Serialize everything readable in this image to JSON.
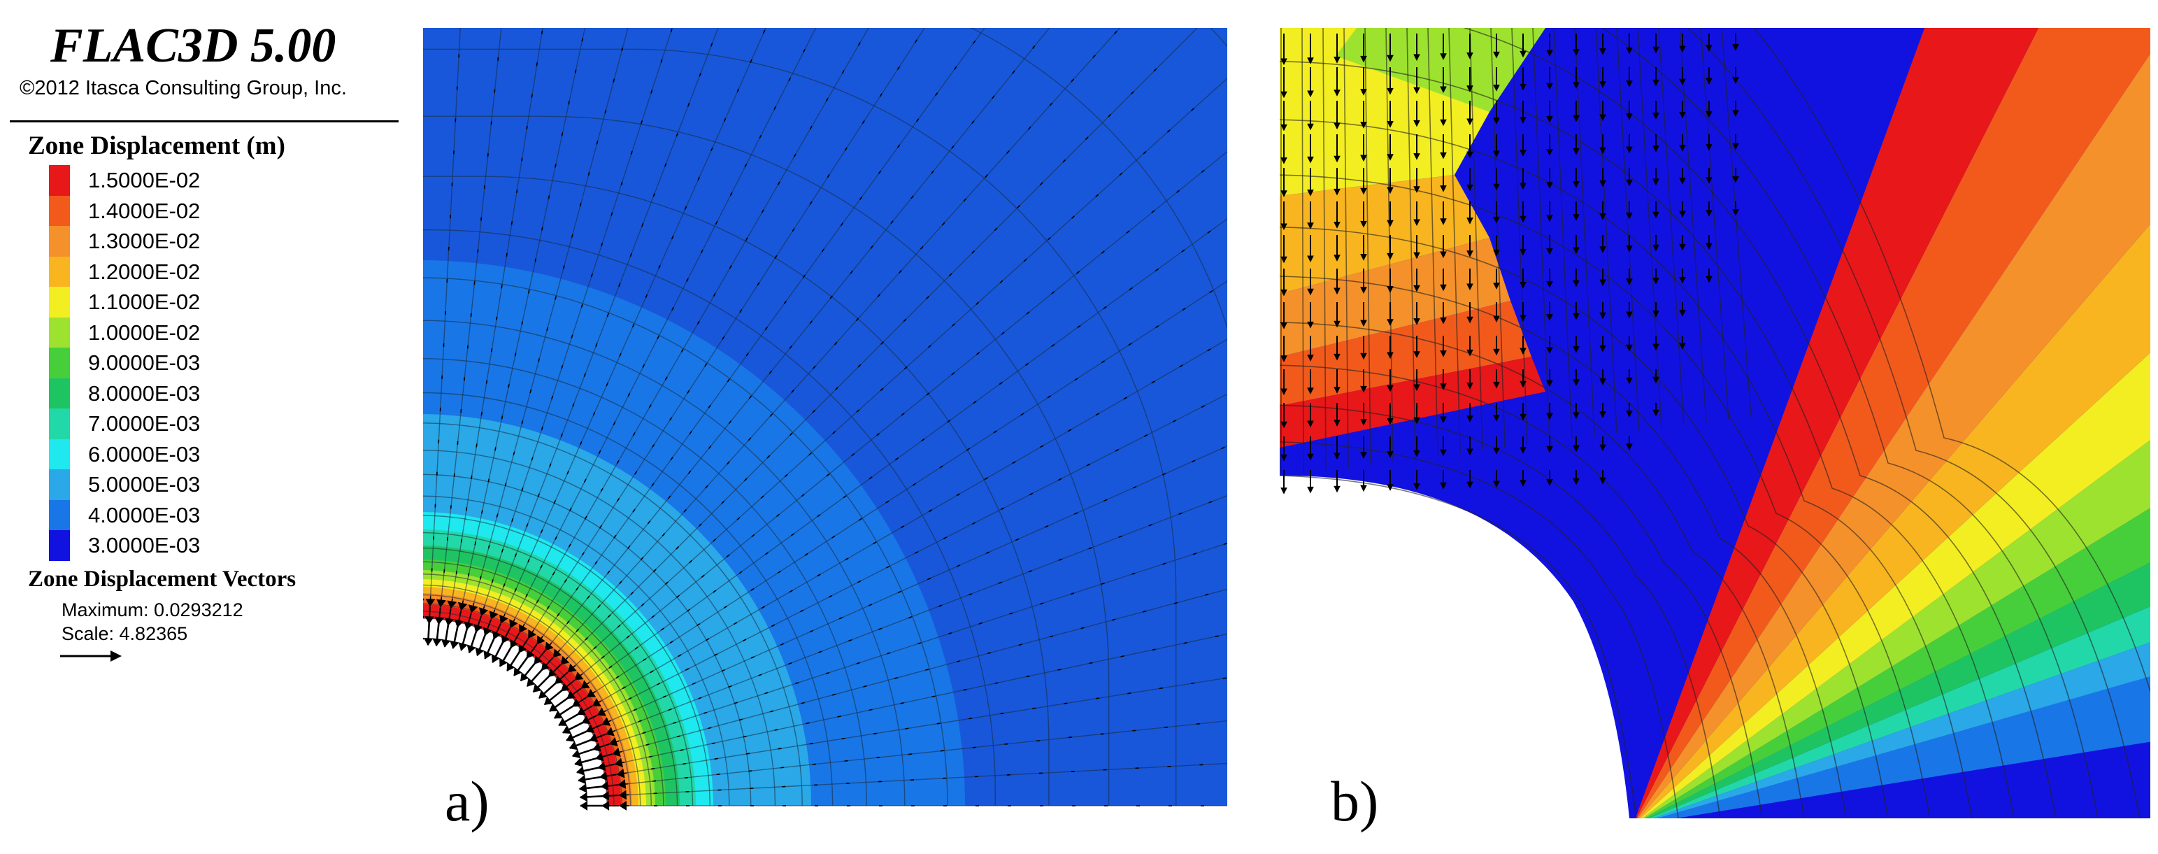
{
  "app": {
    "title": "FLAC3D 5.00",
    "copyright": "©2012 Itasca Consulting Group, Inc."
  },
  "legend": {
    "heading": "Zone Displacement (m)",
    "entries": [
      {
        "label": "1.5000E-02",
        "color": "#e8171a"
      },
      {
        "label": "1.4000E-02",
        "color": "#f25a1c"
      },
      {
        "label": "1.3000E-02",
        "color": "#f5912a"
      },
      {
        "label": "1.2000E-02",
        "color": "#f8b51f"
      },
      {
        "label": "1.1000E-02",
        "color": "#f2ee22"
      },
      {
        "label": "1.0000E-02",
        "color": "#9de22e"
      },
      {
        "label": "9.0000E-03",
        "color": "#46cf3b"
      },
      {
        "label": "8.0000E-03",
        "color": "#1fc462"
      },
      {
        "label": "7.0000E-03",
        "color": "#22d8a8"
      },
      {
        "label": "6.0000E-03",
        "color": "#1fe8ef"
      },
      {
        "label": "5.0000E-03",
        "color": "#2aa8e8"
      },
      {
        "label": "4.0000E-03",
        "color": "#1976e6"
      },
      {
        "label": "3.0000E-03",
        "color": "#1212e0"
      }
    ],
    "vectors": {
      "heading": "Zone Displacement Vectors",
      "maximum": "Maximum: 0.0293212",
      "scale": "Scale: 4.82365"
    }
  },
  "panels": [
    {
      "label": "a)",
      "background": "#1857d9"
    },
    {
      "label": "b)",
      "background": "#1212e0"
    }
  ]
}
